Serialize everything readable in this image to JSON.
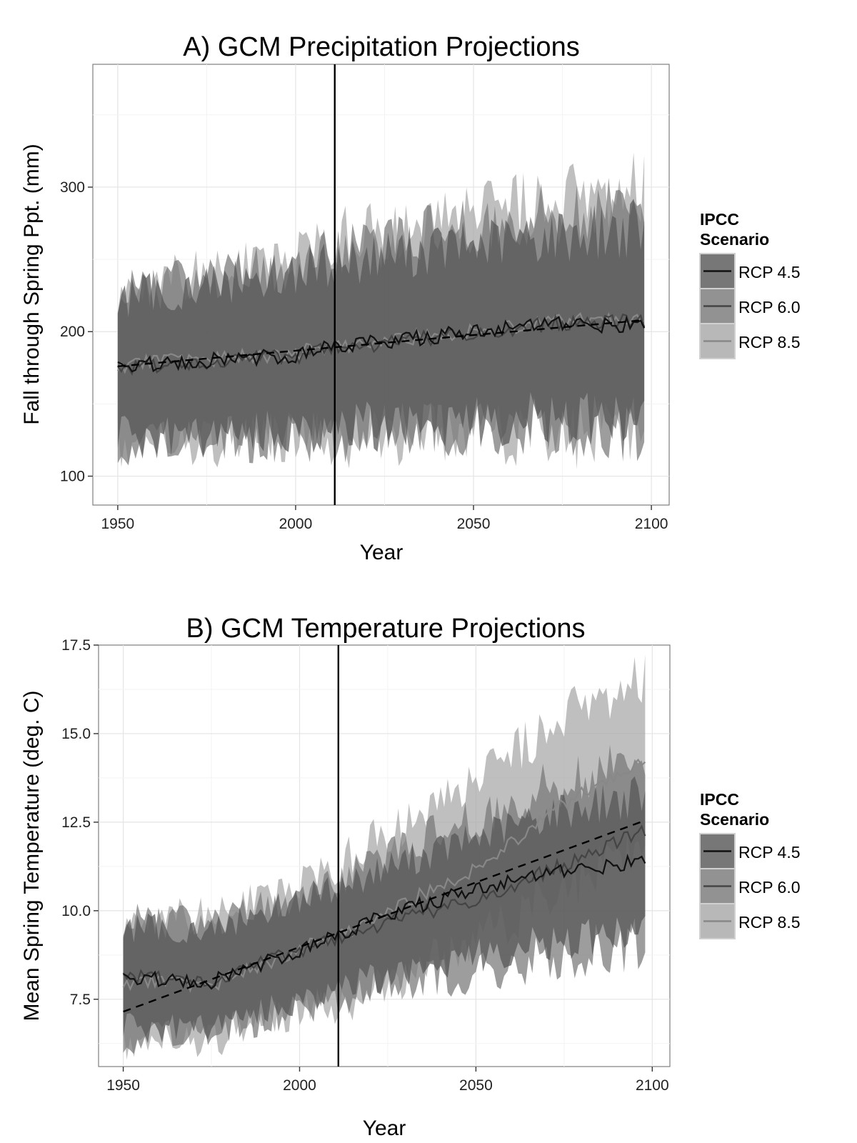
{
  "chart_data": [
    {
      "type": "area",
      "title": "A) GCM Precipitation Projections",
      "xlabel": "Year",
      "ylabel": "Fall through Spring Ppt. (mm)",
      "xlim": [
        1943,
        2105
      ],
      "ylim": [
        80,
        385
      ],
      "x_ticks": [
        1950,
        2000,
        2050,
        2100
      ],
      "x_tick_labels": [
        "1950",
        "2000",
        "2050",
        "2100"
      ],
      "y_ticks": [
        100,
        200,
        300
      ],
      "y_tick_labels": [
        "100",
        "200",
        "300"
      ],
      "grid": true,
      "vline_x": 2011,
      "legend": {
        "title_lines": [
          "IPCC",
          "Scenario"
        ],
        "position": "right",
        "entries": [
          "RCP 4.5",
          "RCP 6.0",
          "RCP 8.5"
        ]
      },
      "series": [
        {
          "name": "RCP 4.5",
          "band_color": "#555555",
          "line_color": "#111111",
          "x": [
            1950,
            1975,
            2000,
            2011,
            2025,
            2050,
            2075,
            2098
          ],
          "mean": [
            176,
            180,
            184,
            190,
            193,
            200,
            205,
            204
          ],
          "lower": [
            128,
            130,
            133,
            135,
            137,
            140,
            142,
            140
          ],
          "upper": [
            222,
            230,
            240,
            245,
            252,
            258,
            265,
            270
          ]
        },
        {
          "name": "RCP 6.0",
          "band_color": "#777777",
          "line_color": "#444444",
          "x": [
            1950,
            1975,
            2000,
            2011,
            2025,
            2050,
            2075,
            2098
          ],
          "mean": [
            175,
            179,
            183,
            189,
            192,
            199,
            206,
            208
          ],
          "lower": [
            125,
            127,
            130,
            131,
            132,
            135,
            137,
            135
          ],
          "upper": [
            225,
            235,
            245,
            255,
            262,
            270,
            280,
            290
          ]
        },
        {
          "name": "RCP 8.5",
          "band_color": "#a6a6a6",
          "line_color": "#888888",
          "x": [
            1950,
            1975,
            2000,
            2011,
            2025,
            2050,
            2075,
            2098
          ],
          "mean": [
            177,
            181,
            185,
            190,
            194,
            201,
            207,
            210
          ],
          "lower": [
            122,
            125,
            128,
            128,
            130,
            132,
            133,
            130
          ],
          "upper": [
            228,
            238,
            250,
            262,
            268,
            278,
            288,
            300
          ]
        }
      ],
      "trend": {
        "x": [
          1950,
          2098
        ],
        "y": [
          176,
          208
        ],
        "style": "dashed"
      }
    },
    {
      "type": "area",
      "title": "B) GCM Temperature Projections",
      "xlabel": "Year",
      "ylabel": "Mean Spring Temperature (deg. C)",
      "xlim": [
        1943,
        2105
      ],
      "ylim": [
        5.6,
        17.5
      ],
      "x_ticks": [
        1950,
        2000,
        2050,
        2100
      ],
      "x_tick_labels": [
        "1950",
        "2000",
        "2050",
        "2100"
      ],
      "y_ticks": [
        7.5,
        10.0,
        12.5,
        15.0,
        17.5
      ],
      "y_tick_labels": [
        "7.5",
        "10.0",
        "12.5",
        "15.0",
        "17.5"
      ],
      "grid": true,
      "vline_x": 2011,
      "legend": {
        "title_lines": [
          "IPCC",
          "Scenario"
        ],
        "position": "right",
        "entries": [
          "RCP 4.5",
          "RCP 6.0",
          "RCP 8.5"
        ]
      },
      "series": [
        {
          "name": "RCP 4.5",
          "band_color": "#555555",
          "line_color": "#111111",
          "x": [
            1950,
            1975,
            2000,
            2011,
            2025,
            2050,
            2075,
            2098
          ],
          "mean": [
            8.1,
            8.0,
            8.9,
            9.3,
            9.9,
            10.6,
            11.1,
            11.4
          ],
          "lower": [
            6.7,
            6.8,
            7.5,
            7.9,
            8.2,
            8.8,
            9.2,
            9.5
          ],
          "upper": [
            9.5,
            9.4,
            10.3,
            10.6,
            11.2,
            12.0,
            12.8,
            13.2
          ]
        },
        {
          "name": "RCP 6.0",
          "band_color": "#777777",
          "line_color": "#444444",
          "x": [
            1950,
            1975,
            2000,
            2011,
            2025,
            2050,
            2075,
            2098
          ],
          "mean": [
            8.2,
            8.0,
            8.9,
            9.2,
            9.7,
            10.3,
            11.3,
            12.3
          ],
          "lower": [
            6.5,
            6.6,
            7.3,
            7.6,
            7.9,
            8.3,
            8.8,
            9.2
          ],
          "upper": [
            9.7,
            9.6,
            10.4,
            10.8,
            11.6,
            12.5,
            13.6,
            14.3
          ]
        },
        {
          "name": "RCP 8.5",
          "band_color": "#a6a6a6",
          "line_color": "#888888",
          "x": [
            1950,
            1975,
            2000,
            2011,
            2025,
            2050,
            2075,
            2098
          ],
          "mean": [
            8.0,
            7.9,
            8.9,
            9.3,
            10.0,
            11.2,
            13.0,
            14.3
          ],
          "lower": [
            6.3,
            6.4,
            7.2,
            7.4,
            8.0,
            9.2,
            10.8,
            11.8
          ],
          "upper": [
            9.7,
            9.8,
            10.7,
            11.2,
            12.2,
            13.5,
            15.4,
            16.6
          ]
        }
      ],
      "trend": {
        "x": [
          1950,
          2098
        ],
        "y": [
          7.15,
          12.55
        ],
        "style": "dashed"
      }
    }
  ]
}
